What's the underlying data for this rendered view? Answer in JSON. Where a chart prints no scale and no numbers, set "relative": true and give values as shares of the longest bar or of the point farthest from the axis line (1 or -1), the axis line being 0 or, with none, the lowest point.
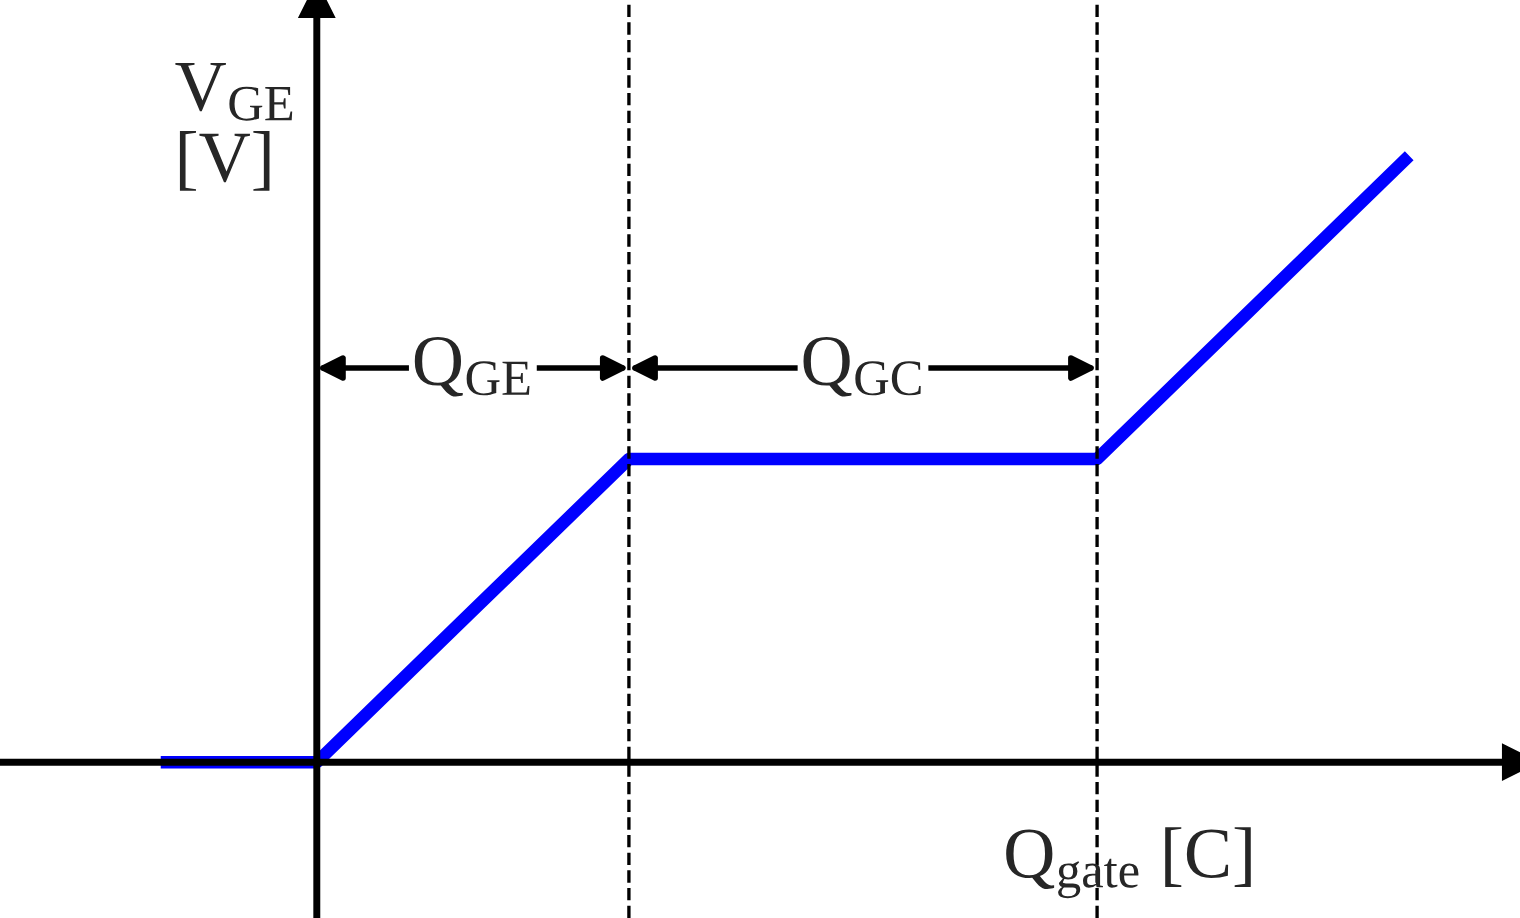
{
  "chart_data": {
    "type": "line",
    "relative": true,
    "xlabel": "Q$_{gate}$ [C]",
    "ylabel": "V$_{GE}$\n[V]",
    "categories": [
      null,
      null,
      null,
      null,
      null,
      null,
      null,
      null,
      null
    ],
    "series": [
      {
        "color": "#0000ff",
        "values": [
          0,
          0,
          0.25,
          0.5,
          0.5,
          0.5,
          0.5,
          0.75,
          1.0
        ]
      }
    ],
    "annotations": [
      "Q$_{GE}$",
      "Q$_{GC}$"
    ],
    "marker": "none",
    "line_style": "solid"
  }
}
